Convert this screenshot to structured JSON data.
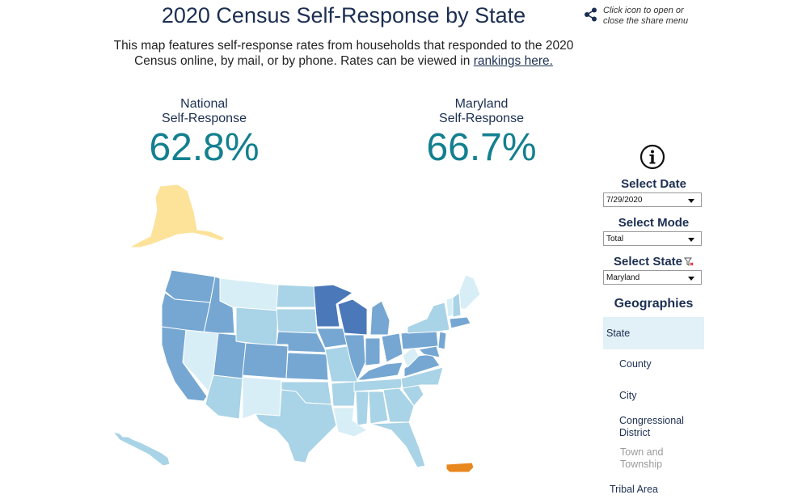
{
  "header": {
    "title": "2020 Census Self-Response by State",
    "share_hint": "Click icon to open or close the share menu",
    "description": "This map features self-response rates from households that responded to the 2020 Census online, by mail, or by phone. Rates can be viewed in",
    "rankings_link": "rankings here."
  },
  "kpis": {
    "national": {
      "line1": "National",
      "line2": "Self-Response",
      "value": "62.8%"
    },
    "state": {
      "line1": "Maryland",
      "line2": "Self-Response",
      "value": "66.7%"
    }
  },
  "controls": {
    "date": {
      "label": "Select Date",
      "value": "7/29/2020"
    },
    "mode": {
      "label": "Select Mode",
      "value": "Total"
    },
    "state": {
      "label": "Select State",
      "value": "Maryland"
    }
  },
  "geographies": {
    "heading": "Geographies",
    "items": [
      {
        "label": "State",
        "active": true
      },
      {
        "label": "County"
      },
      {
        "label": "City"
      },
      {
        "label": "Congressional District"
      },
      {
        "label": "Town and Township",
        "disabled": true
      },
      {
        "label": "Tribal Area"
      }
    ]
  },
  "colors": {
    "dark": "#4a78b9",
    "mid": "#76a7d2",
    "light": "#a9d3e6",
    "pale": "#d8eef6",
    "alaska": "#fde29a",
    "puerto_rico": "#e8871e",
    "accent_teal": "#13808f"
  }
}
